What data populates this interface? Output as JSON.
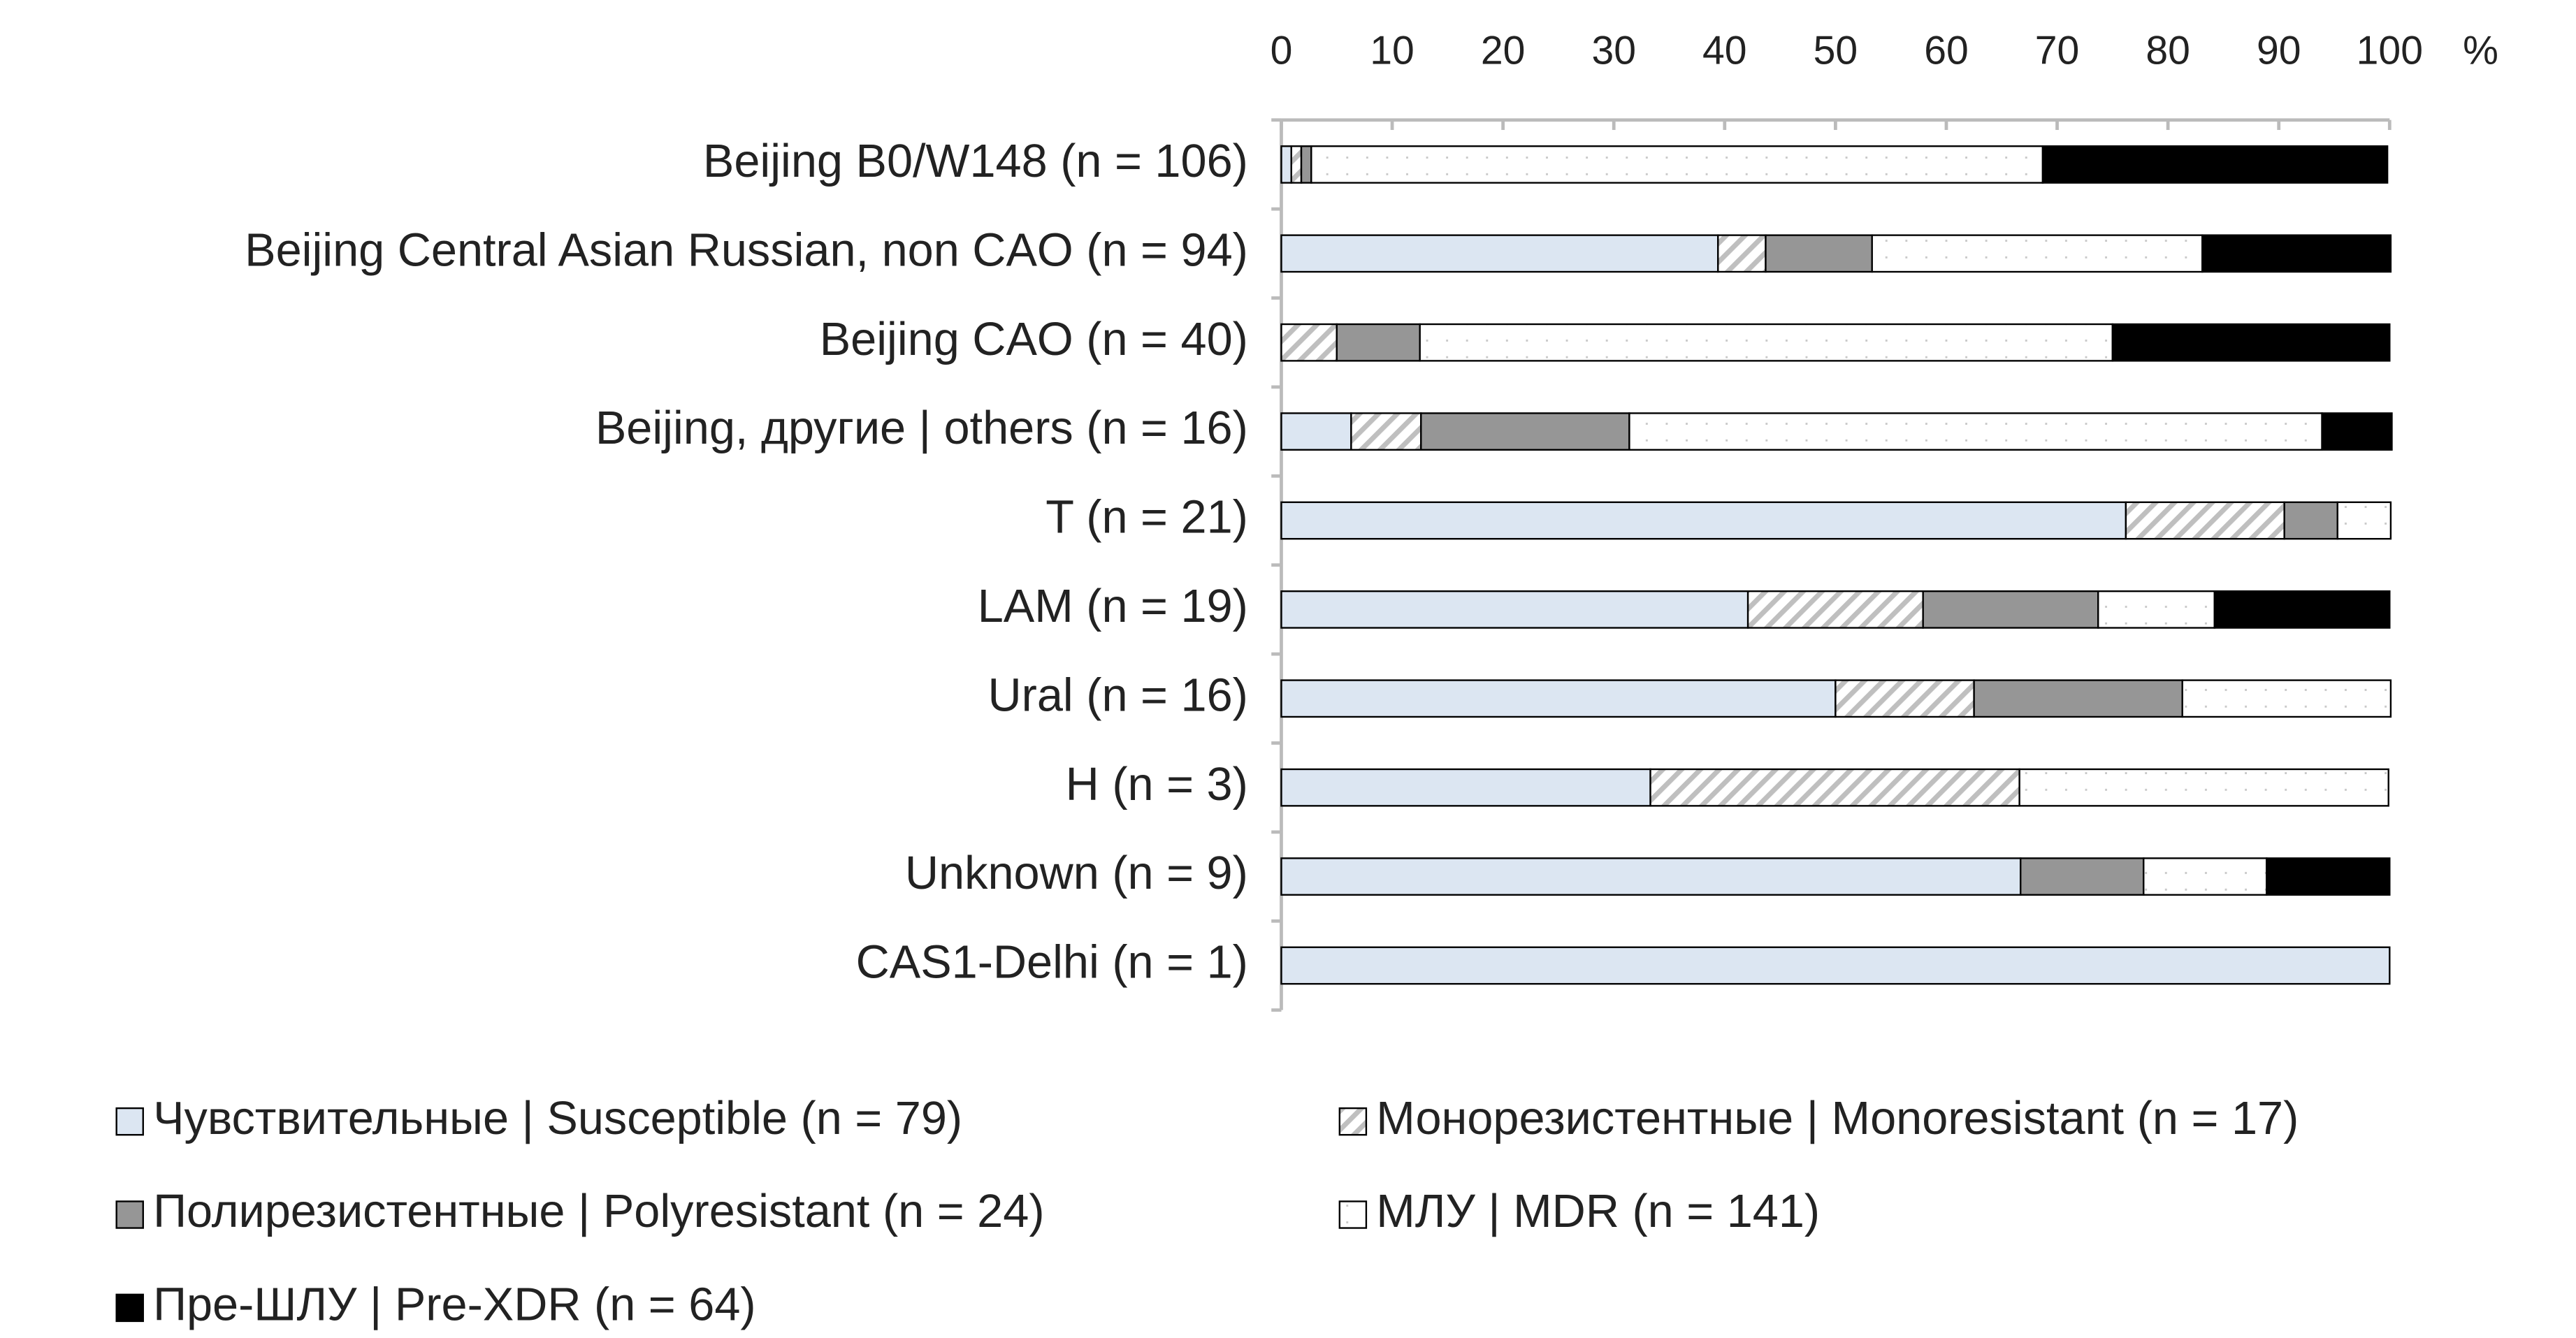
{
  "chart_data": {
    "type": "stacked_barh",
    "xlabel": "%",
    "categories": [
      "Beijing B0/W148 (n = 106)",
      "Beijing Central Asian Russian, non CAO (n = 94)",
      "Beijing CAO (n = 40)",
      "Beijing, другие | others (n = 16)",
      "T (n = 21)",
      "LAM (n = 19)",
      "Ural (n = 16)",
      "H (n = 3)",
      "Unknown (n = 9)",
      "CAS1-Delhi (n = 1)"
    ],
    "series": [
      {
        "name": "Чувствительные | Susceptible (n = 79)",
        "color": "#dce6f2",
        "pattern": "solid",
        "values": [
          0.9,
          39.4,
          0,
          6.3,
          76.2,
          42.1,
          50,
          33.3,
          66.7,
          100
        ]
      },
      {
        "name": "Монорезистентные | Monoresistant (n = 17)",
        "color": "#bfbfbf",
        "pattern": "hatch",
        "values": [
          0.9,
          4.3,
          5,
          6.3,
          14.3,
          15.8,
          12.5,
          33.3,
          0,
          0
        ]
      },
      {
        "name": "Полирезистентные | Polyresistant (n = 24)",
        "color": "#969696",
        "pattern": "solid",
        "values": [
          0.9,
          9.6,
          7.5,
          18.8,
          4.8,
          15.8,
          18.8,
          0,
          11.1,
          0
        ]
      },
      {
        "name": "МЛУ | MDR (n = 141)",
        "color": "#c8c8c8",
        "pattern": "dots",
        "values": [
          66.0,
          29.8,
          62.5,
          62.5,
          4.8,
          10.5,
          18.8,
          33.3,
          11.1,
          0
        ]
      },
      {
        "name": "Пре-ШЛУ | Pre-XDR (n = 64)",
        "color": "#000000",
        "pattern": "solid",
        "values": [
          31.1,
          17.0,
          25,
          6.3,
          0,
          15.8,
          0,
          0,
          11.1,
          0
        ]
      }
    ],
    "xlim": [
      0,
      100
    ],
    "xticks": [
      0,
      10,
      20,
      30,
      40,
      50,
      60,
      70,
      80,
      90,
      100
    ]
  }
}
